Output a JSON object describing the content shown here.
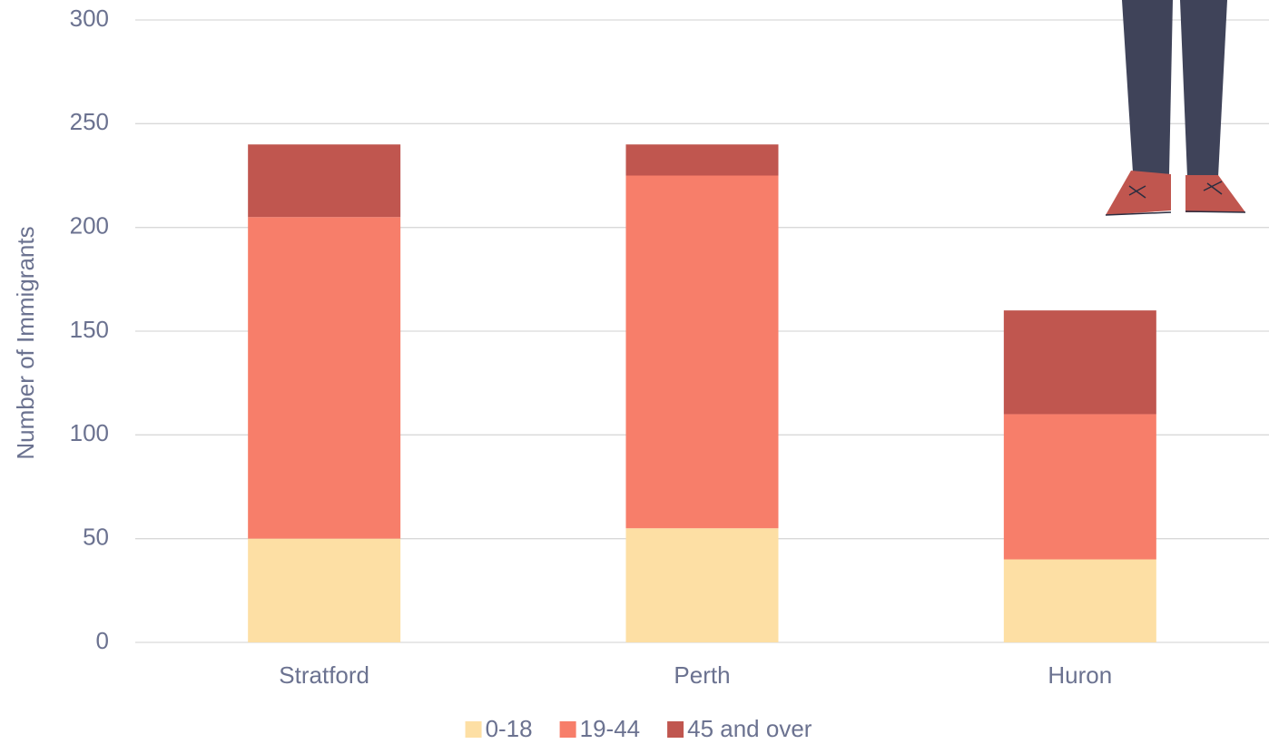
{
  "chart_data": {
    "type": "stacked_bar",
    "y_label": "Number of Immigrants",
    "categories": [
      "Stratford",
      "Perth",
      "Huron"
    ],
    "series": [
      {
        "name": "0-18",
        "color": "#fddfa4",
        "values": [
          50,
          55,
          40
        ]
      },
      {
        "name": "19-44",
        "color": "#f77e6a",
        "values": [
          155,
          170,
          70
        ]
      },
      {
        "name": "45 and over",
        "color": "#c0564f",
        "values": [
          35,
          15,
          50
        ]
      }
    ],
    "ylim": [
      0,
      300
    ],
    "yticks": [
      0,
      50,
      100,
      150,
      200,
      250,
      300
    ],
    "grid": true,
    "legend": "bottom"
  }
}
